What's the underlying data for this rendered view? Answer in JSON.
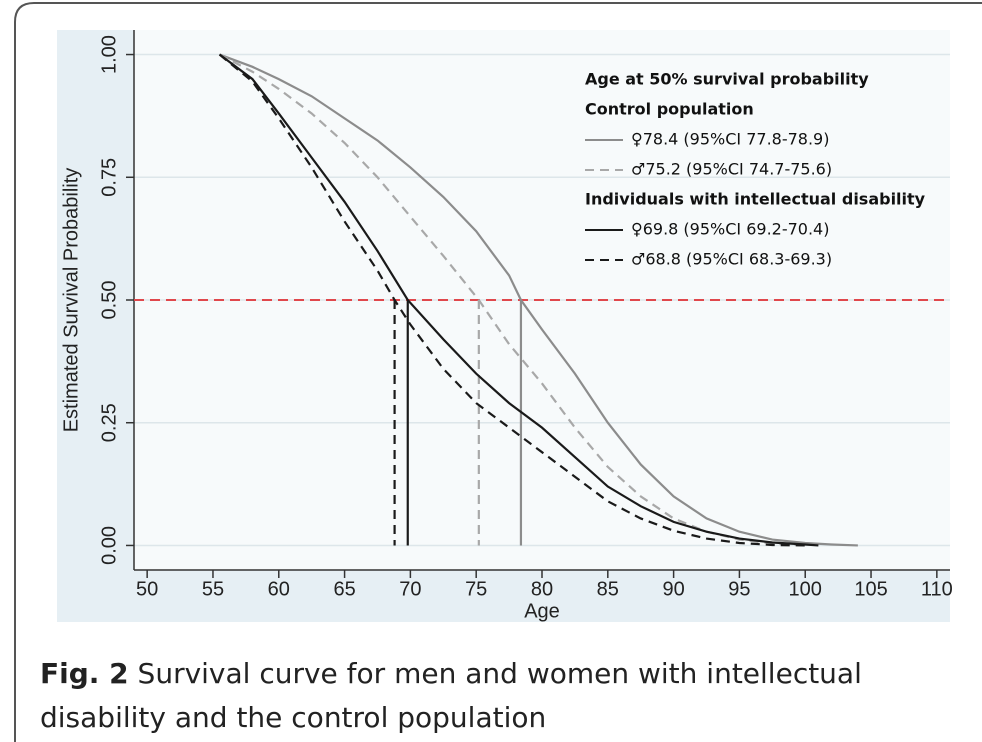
{
  "chart_data": {
    "type": "line",
    "xlabel": "Age",
    "ylabel": "Estimated Survival Probability",
    "caption_label": "Fig. 2",
    "caption": "Survival curve for men and women with intellectual disability and the control population",
    "legend_title": "Age at 50% survival probability",
    "legend_groups": [
      "Control population",
      "Individuals with intellectual disability"
    ],
    "legend_position": "upper right",
    "reference_line": 0.5,
    "reference_color": "#e0474c",
    "xlim": [
      49,
      111
    ],
    "ylim": [
      -0.05,
      1.05
    ],
    "xticks": [
      50,
      55,
      60,
      65,
      70,
      75,
      80,
      85,
      90,
      95,
      100,
      105,
      110
    ],
    "yticks": [
      {
        "value": 0,
        "label": "0.00"
      },
      {
        "value": 0.25,
        "label": "0.25"
      },
      {
        "value": 0.5,
        "label": "0.50"
      },
      {
        "value": 0.75,
        "label": "0.75"
      },
      {
        "value": 1,
        "label": "1.00"
      }
    ],
    "grid": true,
    "series": [
      {
        "name": "♀78.4 (95%CI 77.8-78.9)",
        "group": 0,
        "color": "#8c8c8c",
        "dash": "solid",
        "median": 78.4,
        "x": [
          55.5,
          58,
          60,
          62.5,
          65,
          67.5,
          70,
          72.5,
          75,
          77.5,
          78.4,
          80,
          82.5,
          85,
          87.5,
          90,
          92.5,
          95,
          97.5,
          100,
          102,
          104
        ],
        "values": [
          1.0,
          0.975,
          0.95,
          0.915,
          0.87,
          0.825,
          0.77,
          0.71,
          0.64,
          0.55,
          0.5,
          0.44,
          0.35,
          0.25,
          0.165,
          0.1,
          0.055,
          0.028,
          0.012,
          0.005,
          0.002,
          0.0
        ]
      },
      {
        "name": "♂75.2 (95%CI 74.7-75.6)",
        "group": 0,
        "color": "#a8a8a8",
        "dash": "dashed",
        "median": 75.2,
        "x": [
          55.5,
          58,
          60,
          62.5,
          65,
          67.5,
          70,
          72.5,
          75.2,
          77.5,
          80,
          82.5,
          85,
          87.5,
          90,
          92.5,
          95,
          97.5,
          100
        ],
        "values": [
          1.0,
          0.965,
          0.93,
          0.88,
          0.82,
          0.75,
          0.67,
          0.59,
          0.5,
          0.41,
          0.33,
          0.24,
          0.16,
          0.1,
          0.055,
          0.028,
          0.012,
          0.004,
          0.001
        ]
      },
      {
        "name": "♀69.8 (95%CI 69.2-70.4)",
        "group": 1,
        "color": "#1a1a1a",
        "dash": "solid",
        "median": 69.8,
        "x": [
          55.5,
          58,
          60,
          62.5,
          65,
          67.5,
          69.8,
          72.5,
          75,
          77.5,
          80,
          82.5,
          85,
          87.5,
          90,
          92.5,
          95,
          97.5,
          100,
          101
        ],
        "values": [
          1.0,
          0.95,
          0.88,
          0.79,
          0.7,
          0.6,
          0.5,
          0.42,
          0.35,
          0.29,
          0.24,
          0.18,
          0.12,
          0.08,
          0.048,
          0.028,
          0.014,
          0.006,
          0.002,
          0.0
        ]
      },
      {
        "name": "♂68.8 (95%CI 68.3-69.3)",
        "group": 1,
        "color": "#1a1a1a",
        "dash": "dashed",
        "median": 68.8,
        "x": [
          55.5,
          58,
          60,
          62.5,
          65,
          67.5,
          68.8,
          70,
          72.5,
          75,
          77.5,
          80,
          82.5,
          85,
          87.5,
          90,
          92.5,
          95,
          97.5,
          100
        ],
        "values": [
          1.0,
          0.945,
          0.87,
          0.77,
          0.66,
          0.56,
          0.5,
          0.45,
          0.36,
          0.29,
          0.24,
          0.19,
          0.14,
          0.09,
          0.055,
          0.03,
          0.014,
          0.005,
          0.001,
          0.0
        ]
      }
    ]
  }
}
